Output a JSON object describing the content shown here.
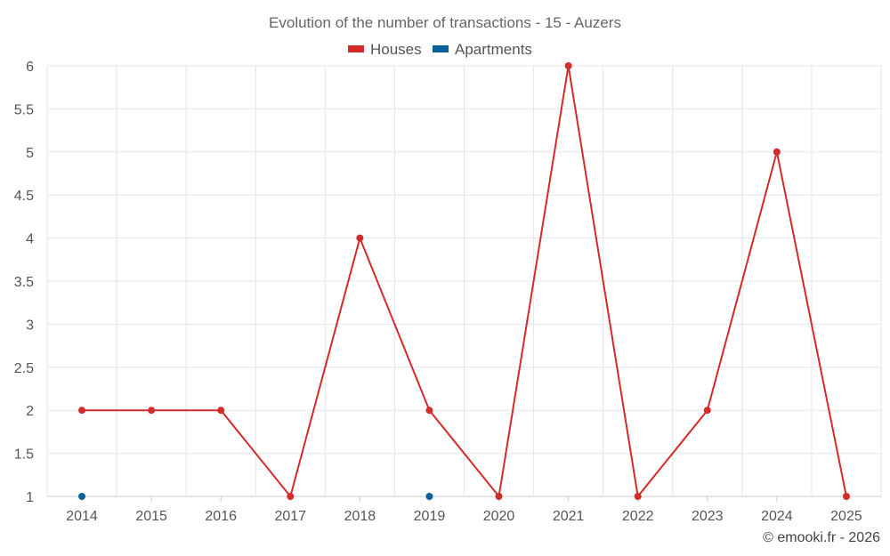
{
  "chart_data": {
    "type": "line",
    "title": "Evolution of the number of transactions - 15 - Auzers",
    "categories": [
      "2014",
      "2015",
      "2016",
      "2017",
      "2018",
      "2019",
      "2020",
      "2021",
      "2022",
      "2023",
      "2024",
      "2025"
    ],
    "ylim": [
      1,
      6
    ],
    "yticks": [
      1,
      1.5,
      2,
      2.5,
      3,
      3.5,
      4,
      4.5,
      5,
      5.5,
      6
    ],
    "grid": true,
    "legend_position": "top-center",
    "series": [
      {
        "name": "Houses",
        "color": "#d42a2a",
        "values": [
          2,
          2,
          2,
          1,
          4,
          2,
          1,
          6,
          1,
          2,
          5,
          1
        ],
        "line": true
      },
      {
        "name": "Apartments",
        "color": "#0a6199",
        "values": [
          1,
          null,
          null,
          null,
          null,
          1,
          null,
          null,
          null,
          null,
          null,
          null
        ],
        "line": false
      }
    ]
  },
  "credit": "© emooki.fr - 2026"
}
